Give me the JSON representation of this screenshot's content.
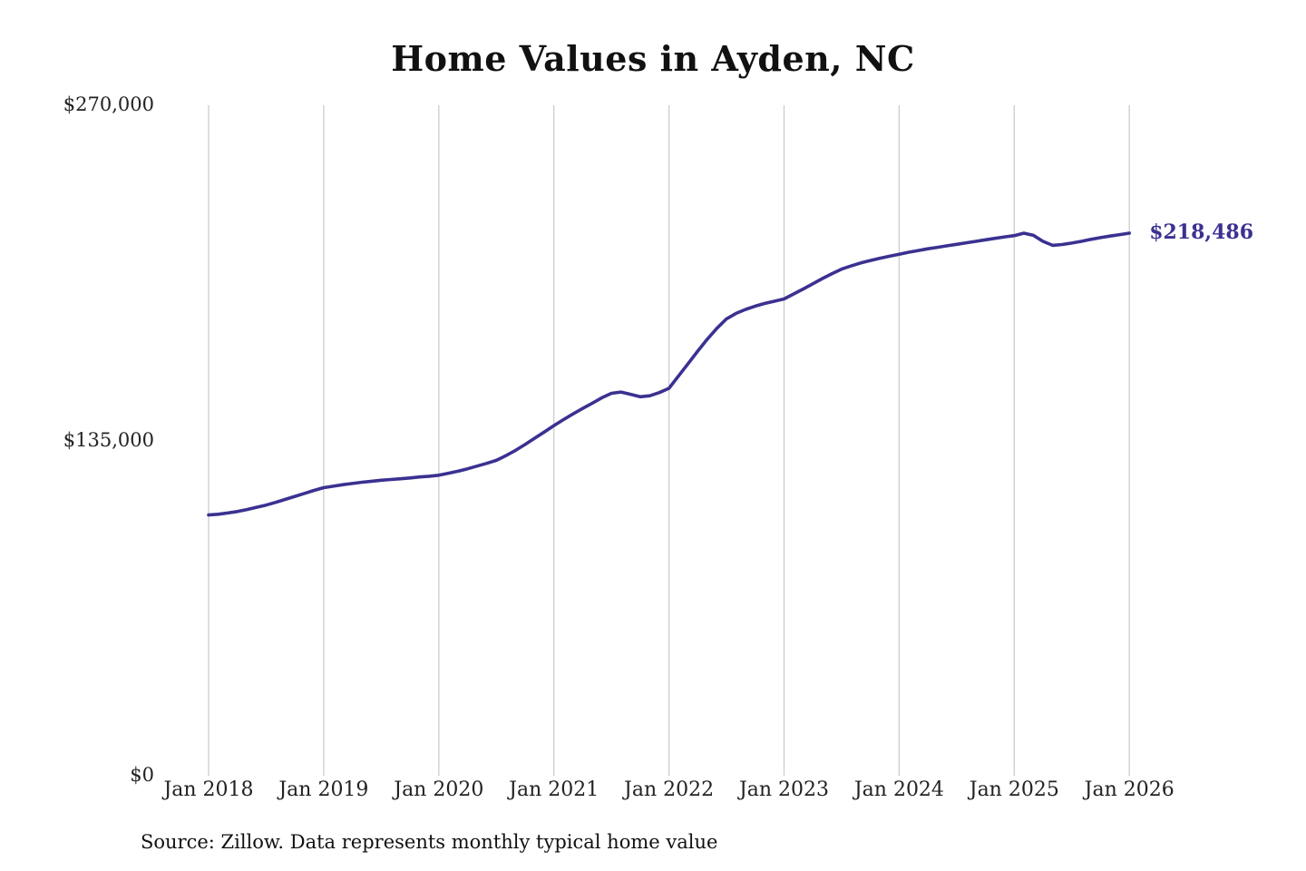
{
  "chart_data": {
    "type": "line",
    "title": "Home Values in Ayden, NC",
    "source_note": "Source: Zillow. Data represents monthly typical home value",
    "ylabel": "",
    "xlabel": "",
    "ylim": [
      0,
      270000
    ],
    "grid": "vertical-only",
    "legend": "none",
    "line_color": "#3a3191",
    "grid_color": "#cccccc",
    "end_label": "$218,486",
    "end_value": 218486,
    "y_tick_labels": [
      "$0",
      "$135,000",
      "$270,000"
    ],
    "y_tick_values": [
      0,
      135000,
      270000
    ],
    "x_tick_labels": [
      "Jan 2018",
      "Jan 2019",
      "Jan 2020",
      "Jan 2021",
      "Jan 2022",
      "Jan 2023",
      "Jan 2024",
      "Jan 2025",
      "Jan 2026"
    ],
    "x_start_month": "2018-01",
    "x_frequency": "monthly",
    "series": [
      {
        "name": "Typical home value",
        "values": [
          105000,
          105300,
          105800,
          106400,
          107200,
          108100,
          109000,
          110100,
          111300,
          112500,
          113700,
          114900,
          116000,
          116600,
          117200,
          117700,
          118200,
          118600,
          119000,
          119300,
          119600,
          119900,
          120300,
          120600,
          121000,
          121800,
          122600,
          123600,
          124700,
          125800,
          127000,
          128900,
          131000,
          133400,
          135900,
          138400,
          141000,
          143400,
          145700,
          147900,
          150000,
          152200,
          154000,
          154500,
          153600,
          152600,
          153000,
          154300,
          156000,
          161000,
          166000,
          171000,
          175800,
          180200,
          184000,
          186200,
          187800,
          189100,
          190200,
          191100,
          192000,
          194000,
          196000,
          198100,
          200200,
          202200,
          204000,
          205300,
          206500,
          207500,
          208400,
          209200,
          210000,
          210800,
          211500,
          212200,
          212800,
          213400,
          214000,
          214600,
          215200,
          215800,
          216400,
          217000,
          217500,
          218500,
          217600,
          215200,
          213600,
          213900,
          214500,
          215200,
          216000,
          216700,
          217300,
          217900,
          218486
        ]
      }
    ]
  }
}
